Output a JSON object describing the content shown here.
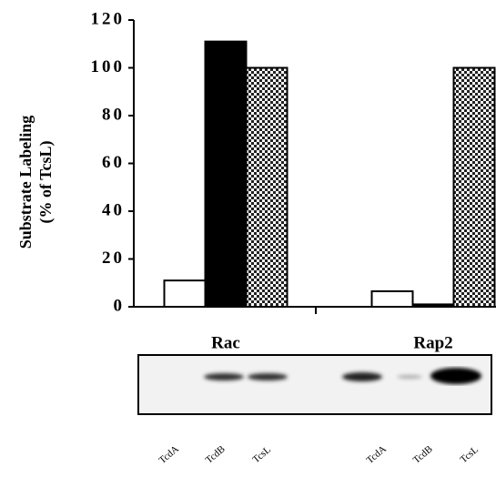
{
  "chart_data": {
    "type": "bar",
    "y_label": [
      "Substrate Labeling",
      "(% of TcsL)"
    ],
    "categories": [
      "Rac",
      "Rap2"
    ],
    "series": [
      {
        "name": "TcdA",
        "color": "#ffffff",
        "values": [
          11,
          6.5
        ]
      },
      {
        "name": "TcdB",
        "color": "#000000",
        "values": [
          111,
          1
        ]
      },
      {
        "name": "TcsL",
        "color": "checker",
        "values": [
          100,
          100
        ]
      }
    ],
    "ylim": [
      0,
      120
    ],
    "yticks": [
      0,
      20,
      40,
      60,
      80,
      100,
      120
    ]
  }
}
